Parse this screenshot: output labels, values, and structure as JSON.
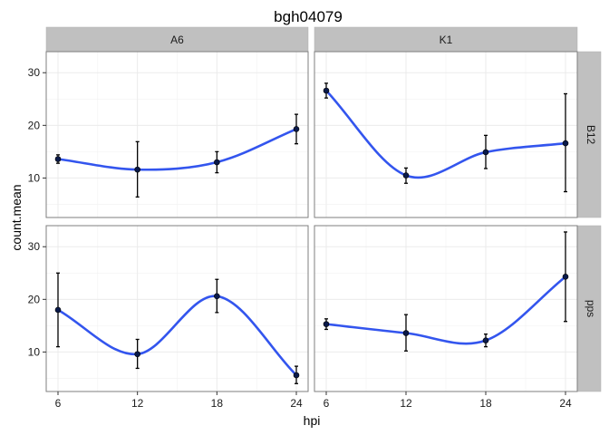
{
  "chart_data": {
    "type": "line",
    "title": "bgh04079",
    "xlabel": "hpi",
    "ylabel": "count.mean",
    "x": [
      6,
      12,
      18,
      24
    ],
    "xlim": [
      6,
      24
    ],
    "ylim": [
      2.5,
      34
    ],
    "yticks": [
      10,
      20,
      30
    ],
    "xticks": [
      6,
      12,
      18,
      24
    ],
    "col_facets": [
      "A6",
      "K1"
    ],
    "row_facets": [
      "B12",
      "pps"
    ],
    "grid": true,
    "colors": {
      "line": "#3355ee",
      "point": "#0a1a4a",
      "errorbar": "#000000",
      "strip": "#c0c0c0",
      "grid": "#ebebeb",
      "border": "#7f7f7f"
    },
    "panels": [
      {
        "col": "A6",
        "row": "B12",
        "mean": [
          13.6,
          11.6,
          13.0,
          19.3
        ],
        "lower": [
          12.8,
          6.4,
          11.0,
          16.5
        ],
        "upper": [
          14.4,
          16.9,
          15.0,
          22.1
        ]
      },
      {
        "col": "K1",
        "row": "B12",
        "mean": [
          26.6,
          10.5,
          14.9,
          16.6
        ],
        "lower": [
          25.2,
          9.0,
          11.8,
          7.4
        ],
        "upper": [
          28.0,
          11.9,
          18.1,
          26.0
        ]
      },
      {
        "col": "A6",
        "row": "pps",
        "mean": [
          18.0,
          9.6,
          20.6,
          5.6
        ],
        "lower": [
          11.0,
          6.9,
          17.5,
          4.0
        ],
        "upper": [
          25.0,
          12.4,
          23.8,
          7.3
        ]
      },
      {
        "col": "K1",
        "row": "pps",
        "mean": [
          15.3,
          13.6,
          12.2,
          24.3
        ],
        "lower": [
          14.3,
          10.2,
          11.0,
          15.8
        ],
        "upper": [
          16.3,
          17.1,
          13.4,
          32.8
        ]
      }
    ]
  }
}
